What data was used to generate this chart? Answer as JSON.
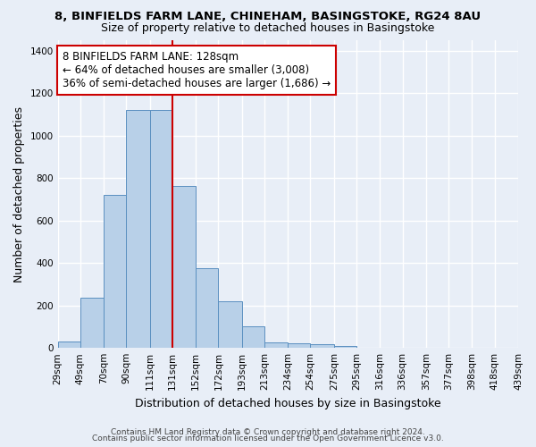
{
  "title1": "8, BINFIELDS FARM LANE, CHINEHAM, BASINGSTOKE, RG24 8AU",
  "title2": "Size of property relative to detached houses in Basingstoke",
  "xlabel": "Distribution of detached houses by size in Basingstoke",
  "ylabel": "Number of detached properties",
  "footer1": "Contains HM Land Registry data © Crown copyright and database right 2024.",
  "footer2": "Contains public sector information licensed under the Open Government Licence v3.0.",
  "bin_labels": [
    "29sqm",
    "49sqm",
    "70sqm",
    "90sqm",
    "111sqm",
    "131sqm",
    "152sqm",
    "172sqm",
    "193sqm",
    "213sqm",
    "234sqm",
    "254sqm",
    "275sqm",
    "295sqm",
    "316sqm",
    "336sqm",
    "357sqm",
    "377sqm",
    "398sqm",
    "418sqm",
    "439sqm"
  ],
  "counts": [
    30,
    235,
    720,
    1120,
    1120,
    765,
    375,
    220,
    100,
    28,
    20,
    18,
    10,
    2,
    1,
    0,
    0,
    0,
    0,
    0
  ],
  "bar_color": "#b8d0e8",
  "bar_edge_color": "#5a8fc0",
  "ref_line_color": "#cc0000",
  "annotation_line1": "8 BINFIELDS FARM LANE: 128sqm",
  "annotation_line2": "← 64% of detached houses are smaller (3,008)",
  "annotation_line3": "36% of semi-detached houses are larger (1,686) →",
  "annotation_box_color": "white",
  "annotation_box_edge": "#cc0000",
  "ylim": [
    0,
    1450
  ],
  "yticks": [
    0,
    200,
    400,
    600,
    800,
    1000,
    1200,
    1400
  ],
  "background_color": "#e8eef7",
  "axes_background": "#e8eef7",
  "grid_color": "white",
  "title1_fontsize": 9.5,
  "title2_fontsize": 9.0,
  "tick_fontsize": 7.5,
  "ylabel_fontsize": 9.0,
  "xlabel_fontsize": 9.0,
  "annotation_fontsize": 8.5,
  "footer_fontsize": 6.5
}
